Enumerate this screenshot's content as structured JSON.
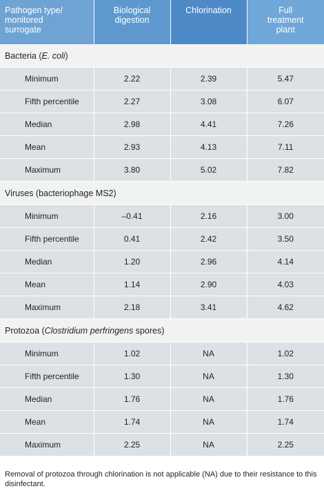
{
  "table": {
    "headers": [
      [
        "Pathogen type/",
        "monitored",
        "surrogate"
      ],
      [
        "Biological",
        "digestion"
      ],
      [
        "Chlorination"
      ],
      [
        "Full",
        "treatment",
        "plant"
      ]
    ],
    "groups": [
      {
        "label_plain": "Bacteria (",
        "label_italic": "E. coli",
        "label_after": ")",
        "rows": [
          [
            "Minimum",
            "2.22",
            "2.39",
            "5.47"
          ],
          [
            "Fifth percentile",
            "2.27",
            "3.08",
            "6.07"
          ],
          [
            "Median",
            "2.98",
            "4.41",
            "7.26"
          ],
          [
            "Mean",
            "2.93",
            "4.13",
            "7.11"
          ],
          [
            "Maximum",
            "3.80",
            "5.02",
            "7.82"
          ]
        ]
      },
      {
        "label_plain": "Viruses (bacteriophage MS2)",
        "label_italic": "",
        "label_after": "",
        "rows": [
          [
            "Minimum",
            "–0.41",
            "2.16",
            "3.00"
          ],
          [
            "Fifth percentile",
            "0.41",
            "2.42",
            "3.50"
          ],
          [
            "Median",
            "1.20",
            "2.96",
            "4.14"
          ],
          [
            "Mean",
            "1.14",
            "2.90",
            "4.03"
          ],
          [
            "Maximum",
            "2.18",
            "3.41",
            "4.62"
          ]
        ]
      },
      {
        "label_plain": "Protozoa (",
        "label_italic": "Clostridium perfringens",
        "label_after": " spores)",
        "rows": [
          [
            "Minimum",
            "1.02",
            "NA",
            "1.02"
          ],
          [
            "Fifth percentile",
            "1.30",
            "NA",
            "1.30"
          ],
          [
            "Median",
            "1.76",
            "NA",
            "1.76"
          ],
          [
            "Mean",
            "1.74",
            "NA",
            "1.74"
          ],
          [
            "Maximum",
            "2.25",
            "NA",
            "2.25"
          ]
        ]
      }
    ]
  },
  "footnote": "Removal of protozoa through chlorination is not applicable (NA) due to their resistance to this disinfectant.",
  "colors": {
    "header_col0": "#6fa3d4",
    "header_col1": "#5e98cf",
    "header_col2": "#4d8ac7",
    "header_col3": "#6fa7d8",
    "group_row": "#f1f3f3",
    "data_row": "#dbe1e4",
    "text": "#231f20"
  }
}
